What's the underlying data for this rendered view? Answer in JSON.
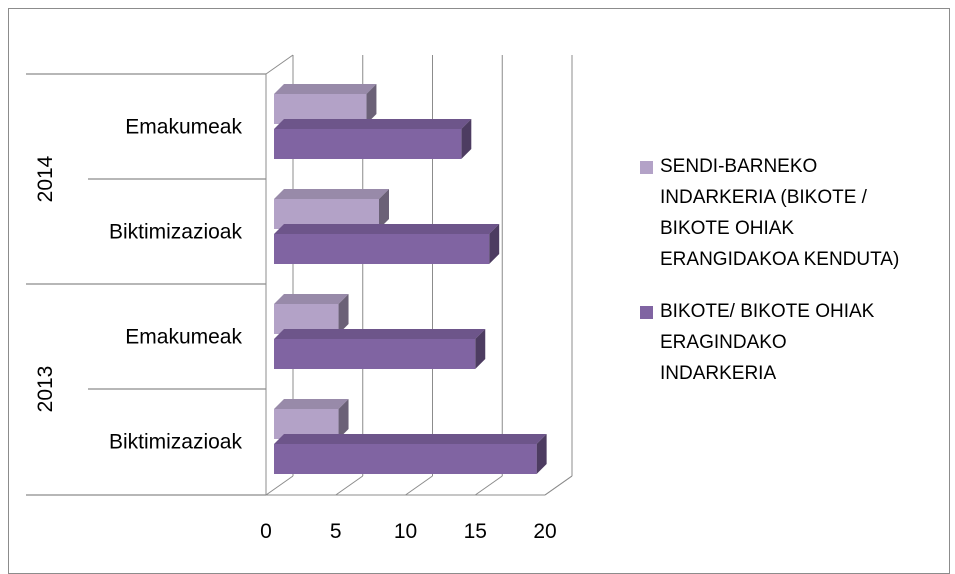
{
  "chart_data": {
    "type": "bar",
    "orientation": "horizontal",
    "style": "3d-clustered",
    "groups": [
      {
        "year": "2014",
        "categories": [
          "Emakumeak",
          "Biktimizazioak"
        ]
      },
      {
        "year": "2013",
        "categories": [
          "Emakumeak",
          "Biktimizazioak"
        ]
      }
    ],
    "rows": [
      {
        "year": "2014",
        "category": "Emakumeak"
      },
      {
        "year": "2014",
        "category": "Biktimizazioak"
      },
      {
        "year": "2013",
        "category": "Emakumeak"
      },
      {
        "year": "2013",
        "category": "Biktimizazioak"
      }
    ],
    "series": [
      {
        "name": "SENDI-BARNEKO INDARKERIA  (BIKOTE / BIKOTE OHIAK ERANGIDAKOA KENDUTA)",
        "legend_lines": [
          "SENDI-BARNEKO",
          "INDARKERIA  (BIKOTE /",
          "BIKOTE OHIAK",
          "ERANGIDAKOA KENDUTA)"
        ],
        "color": "#b3a2c7",
        "values": [
          7.2,
          8.1,
          5.2,
          5.2
        ]
      },
      {
        "name": "BIKOTE/ BIKOTE OHIAK ERAGINDAKO INDARKERIA",
        "legend_lines": [
          "BIKOTE/ BIKOTE OHIAK",
          "ERAGINDAKO",
          "INDARKERIA"
        ],
        "color": "#8064a2",
        "values": [
          14,
          16,
          15,
          19.4
        ]
      }
    ],
    "x_ticks": [
      "0",
      "5",
      "10",
      "15",
      "20"
    ],
    "xlim": [
      0,
      20
    ],
    "grid": true,
    "legend_position": "right",
    "title": "",
    "xlabel": "",
    "ylabel": ""
  }
}
